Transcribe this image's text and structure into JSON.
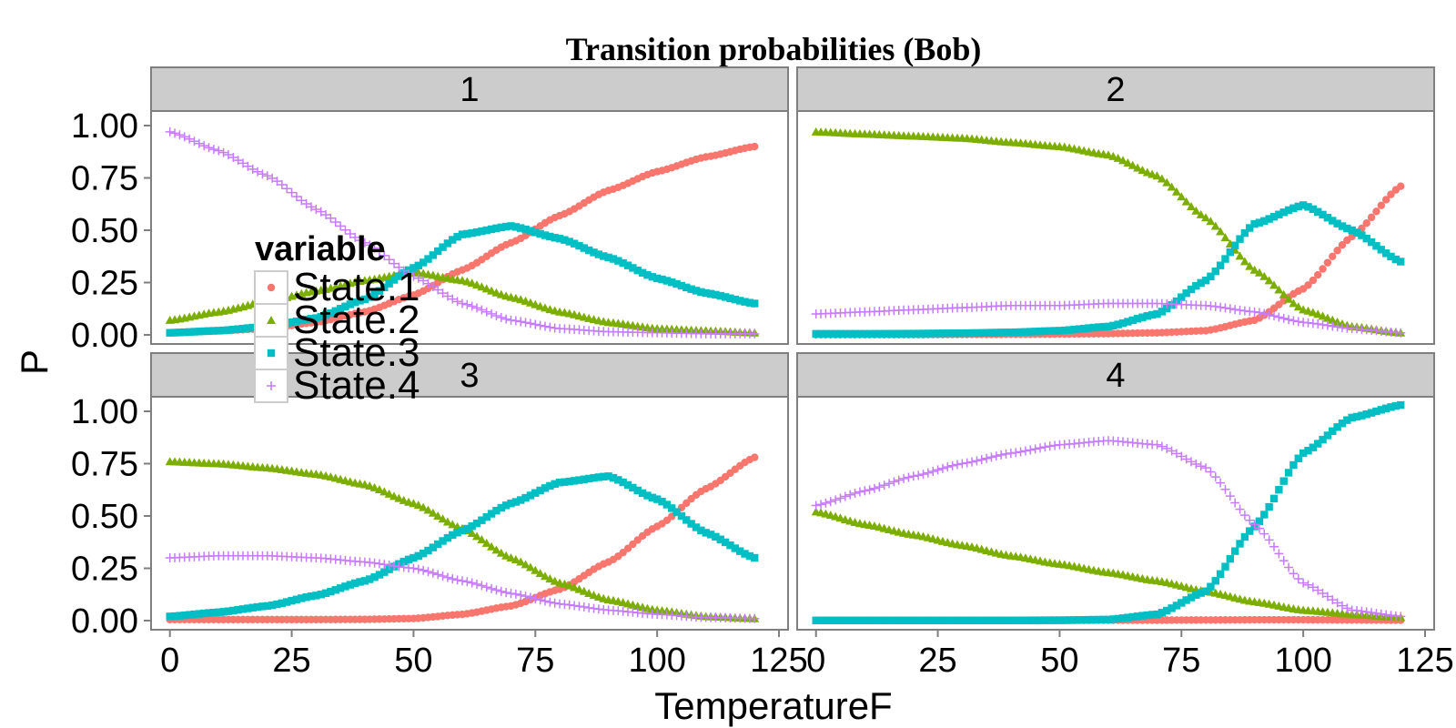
{
  "chart_data": {
    "type": "scatter",
    "title": "Transition probabilities (Bob)",
    "xlabel": "TemperatureF",
    "ylabel": "P",
    "xlim": [
      -2,
      125
    ],
    "ylim": [
      0,
      1.0
    ],
    "x_ticks": [
      "0",
      "25",
      "50",
      "75",
      "100",
      "125"
    ],
    "y_ticks": [
      "0.00",
      "0.25",
      "0.50",
      "0.75",
      "1.00"
    ],
    "grid": false,
    "legend": {
      "title": "variable",
      "placement": "overlay-left",
      "entries": [
        "State.1",
        "State.2",
        "State.3",
        "State.4"
      ]
    },
    "series_styles": [
      {
        "name": "State.1",
        "color": "#F8766D",
        "shape": "circle"
      },
      {
        "name": "State.2",
        "color": "#7CAE00",
        "shape": "triangle"
      },
      {
        "name": "State.3",
        "color": "#00BFC4",
        "shape": "square"
      },
      {
        "name": "State.4",
        "color": "#C77CFF",
        "shape": "plus"
      }
    ],
    "x": [
      0,
      10,
      20,
      30,
      40,
      50,
      60,
      70,
      80,
      90,
      100,
      110,
      120
    ],
    "panels": [
      {
        "label": "1",
        "series": [
          {
            "name": "State.1",
            "values": [
              0.01,
              0.02,
              0.03,
              0.06,
              0.11,
              0.19,
              0.31,
              0.44,
              0.57,
              0.69,
              0.78,
              0.85,
              0.9
            ]
          },
          {
            "name": "State.2",
            "values": [
              0.07,
              0.11,
              0.16,
              0.21,
              0.26,
              0.3,
              0.26,
              0.18,
              0.11,
              0.06,
              0.03,
              0.02,
              0.01
            ]
          },
          {
            "name": "State.3",
            "values": [
              0.01,
              0.02,
              0.04,
              0.08,
              0.17,
              0.32,
              0.48,
              0.52,
              0.46,
              0.37,
              0.27,
              0.2,
              0.15
            ]
          },
          {
            "name": "State.4",
            "values": [
              0.97,
              0.88,
              0.76,
              0.6,
              0.44,
              0.28,
              0.15,
              0.07,
              0.03,
              0.015,
              0.01,
              0.005,
              0.005
            ]
          }
        ]
      },
      {
        "label": "2",
        "series": [
          {
            "name": "State.1",
            "values": [
              0.001,
              0.001,
              0.001,
              0.002,
              0.003,
              0.004,
              0.006,
              0.01,
              0.02,
              0.07,
              0.22,
              0.47,
              0.71
            ]
          },
          {
            "name": "State.2",
            "values": [
              0.97,
              0.96,
              0.95,
              0.94,
              0.92,
              0.9,
              0.86,
              0.76,
              0.56,
              0.31,
              0.12,
              0.04,
              0.01
            ]
          },
          {
            "name": "State.3",
            "values": [
              0.005,
              0.005,
              0.006,
              0.008,
              0.012,
              0.02,
              0.04,
              0.1,
              0.26,
              0.53,
              0.62,
              0.5,
              0.35
            ]
          },
          {
            "name": "State.4",
            "values": [
              0.1,
              0.11,
              0.12,
              0.13,
              0.14,
              0.14,
              0.15,
              0.15,
              0.14,
              0.11,
              0.06,
              0.03,
              0.01
            ]
          }
        ]
      },
      {
        "label": "3",
        "series": [
          {
            "name": "State.1",
            "values": [
              0.005,
              0.005,
              0.005,
              0.005,
              0.006,
              0.01,
              0.03,
              0.07,
              0.15,
              0.28,
              0.45,
              0.63,
              0.78
            ]
          },
          {
            "name": "State.2",
            "values": [
              0.76,
              0.75,
              0.73,
              0.7,
              0.65,
              0.56,
              0.44,
              0.3,
              0.18,
              0.1,
              0.05,
              0.02,
              0.01
            ]
          },
          {
            "name": "State.3",
            "values": [
              0.02,
              0.04,
              0.07,
              0.12,
              0.19,
              0.3,
              0.43,
              0.56,
              0.66,
              0.69,
              0.58,
              0.42,
              0.3
            ]
          },
          {
            "name": "State.4",
            "values": [
              0.3,
              0.31,
              0.31,
              0.3,
              0.28,
              0.25,
              0.19,
              0.13,
              0.08,
              0.05,
              0.03,
              0.015,
              0.01
            ]
          }
        ]
      },
      {
        "label": "4",
        "series": [
          {
            "name": "State.1",
            "values": [
              0.001,
              0.001,
              0.001,
              0.001,
              0.001,
              0.001,
              0.002,
              0.002,
              0.003,
              0.004,
              0.004,
              0.003,
              0.002
            ]
          },
          {
            "name": "State.2",
            "values": [
              0.52,
              0.46,
              0.41,
              0.36,
              0.31,
              0.27,
              0.23,
              0.19,
              0.14,
              0.09,
              0.05,
              0.03,
              0.015
            ]
          },
          {
            "name": "State.3",
            "values": [
              0.001,
              0.001,
              0.001,
              0.001,
              0.001,
              0.002,
              0.005,
              0.03,
              0.14,
              0.45,
              0.8,
              0.97,
              1.03
            ]
          },
          {
            "name": "State.4",
            "values": [
              0.55,
              0.62,
              0.69,
              0.75,
              0.8,
              0.84,
              0.86,
              0.84,
              0.73,
              0.46,
              0.18,
              0.05,
              0.02
            ]
          }
        ]
      }
    ]
  }
}
